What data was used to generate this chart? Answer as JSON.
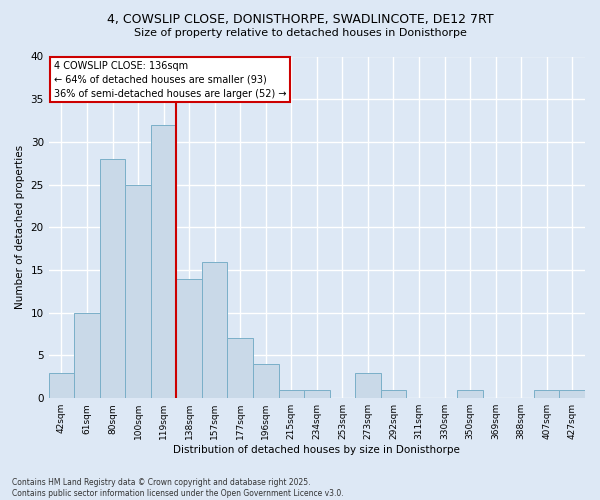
{
  "title_line1": "4, COWSLIP CLOSE, DONISTHORPE, SWADLINCOTE, DE12 7RT",
  "title_line2": "Size of property relative to detached houses in Donisthorpe",
  "xlabel": "Distribution of detached houses by size in Donisthorpe",
  "ylabel": "Number of detached properties",
  "bin_labels": [
    "42sqm",
    "61sqm",
    "80sqm",
    "100sqm",
    "119sqm",
    "138sqm",
    "157sqm",
    "177sqm",
    "196sqm",
    "215sqm",
    "234sqm",
    "253sqm",
    "273sqm",
    "292sqm",
    "311sqm",
    "330sqm",
    "350sqm",
    "369sqm",
    "388sqm",
    "407sqm",
    "427sqm"
  ],
  "bar_values": [
    3,
    10,
    28,
    25,
    32,
    14,
    16,
    7,
    4,
    1,
    1,
    0,
    3,
    1,
    0,
    0,
    1,
    0,
    0,
    1,
    1
  ],
  "bar_color": "#c9d9e8",
  "bar_edgecolor": "#7aafc8",
  "property_line_color": "#cc0000",
  "property_line_index": 4.5,
  "annotation_text": "4 COWSLIP CLOSE: 136sqm\n← 64% of detached houses are smaller (93)\n36% of semi-detached houses are larger (52) →",
  "annotation_box_facecolor": "#ffffff",
  "annotation_box_edgecolor": "#cc0000",
  "ylim": [
    0,
    40
  ],
  "yticks": [
    0,
    5,
    10,
    15,
    20,
    25,
    30,
    35,
    40
  ],
  "footer_text": "Contains HM Land Registry data © Crown copyright and database right 2025.\nContains public sector information licensed under the Open Government Licence v3.0.",
  "background_color": "#dde8f5",
  "plot_background_color": "#dde8f5",
  "grid_color": "#ffffff"
}
